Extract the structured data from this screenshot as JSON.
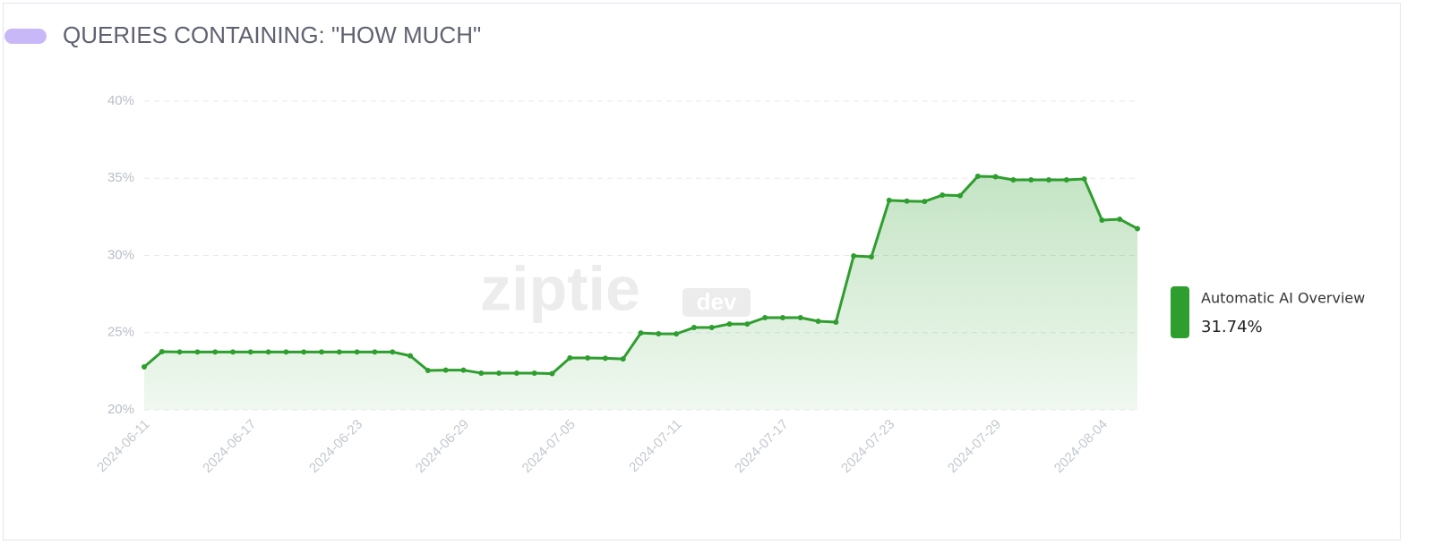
{
  "chart_data": {
    "type": "area",
    "title": "QUERIES CONTAINING: \"HOW MUCH\"",
    "watermark": [
      "ziptie",
      "dev"
    ],
    "x": [
      "2024-06-11",
      "2024-06-12",
      "2024-06-13",
      "2024-06-14",
      "2024-06-15",
      "2024-06-16",
      "2024-06-17",
      "2024-06-18",
      "2024-06-19",
      "2024-06-20",
      "2024-06-21",
      "2024-06-22",
      "2024-06-23",
      "2024-06-24",
      "2024-06-25",
      "2024-06-26",
      "2024-06-27",
      "2024-06-28",
      "2024-06-29",
      "2024-06-30",
      "2024-07-01",
      "2024-07-02",
      "2024-07-03",
      "2024-07-04",
      "2024-07-05",
      "2024-07-06",
      "2024-07-07",
      "2024-07-08",
      "2024-07-09",
      "2024-07-10",
      "2024-07-11",
      "2024-07-12",
      "2024-07-13",
      "2024-07-14",
      "2024-07-15",
      "2024-07-16",
      "2024-07-17",
      "2024-07-18",
      "2024-07-19",
      "2024-07-20",
      "2024-07-21",
      "2024-07-22",
      "2024-07-23",
      "2024-07-24",
      "2024-07-25",
      "2024-07-26",
      "2024-07-27",
      "2024-07-28",
      "2024-07-29",
      "2024-07-30",
      "2024-07-31",
      "2024-08-01",
      "2024-08-02",
      "2024-08-03",
      "2024-08-04",
      "2024-08-05",
      "2024-08-06"
    ],
    "xticks": [
      "2024-06-11",
      "2024-06-17",
      "2024-06-23",
      "2024-06-29",
      "2024-07-05",
      "2024-07-11",
      "2024-07-17",
      "2024-07-23",
      "2024-07-29",
      "2024-08-04"
    ],
    "series": [
      {
        "name": "Automatic AI Overview",
        "color": "#2e9e2e",
        "latest_label": "31.74%",
        "values": [
          22.78,
          23.77,
          23.75,
          23.75,
          23.75,
          23.75,
          23.75,
          23.75,
          23.75,
          23.75,
          23.75,
          23.75,
          23.75,
          23.75,
          23.75,
          23.5,
          22.55,
          22.57,
          22.57,
          22.38,
          22.38,
          22.38,
          22.38,
          22.35,
          23.36,
          23.36,
          23.34,
          23.3,
          24.98,
          24.93,
          24.92,
          25.33,
          25.33,
          25.56,
          25.56,
          25.97,
          25.97,
          25.97,
          25.74,
          25.68,
          29.97,
          29.91,
          33.57,
          33.52,
          33.5,
          33.91,
          33.88,
          35.13,
          35.1,
          34.9,
          34.9,
          34.9,
          34.9,
          34.96,
          32.29,
          32.35,
          31.74
        ]
      }
    ],
    "ylim": [
      20,
      40
    ],
    "yticks": [
      {
        "value": 20,
        "label": "20%"
      },
      {
        "value": 25,
        "label": "25%"
      },
      {
        "value": 30,
        "label": "30%"
      },
      {
        "value": 35,
        "label": "35%"
      },
      {
        "value": 40,
        "label": "40%"
      }
    ],
    "grid": true
  }
}
